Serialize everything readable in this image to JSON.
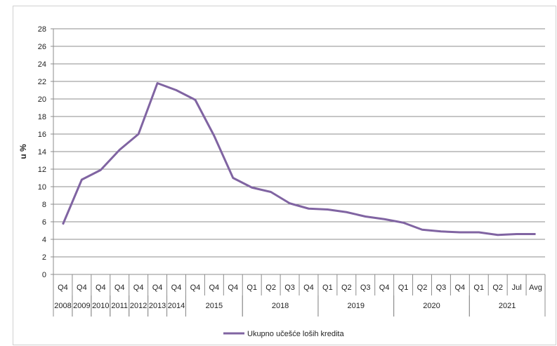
{
  "chart_data": {
    "type": "line",
    "ylabel": "u %",
    "ylim": [
      0,
      28
    ],
    "yticks": [
      0,
      2,
      4,
      6,
      8,
      10,
      12,
      14,
      16,
      18,
      20,
      22,
      24,
      26,
      28
    ],
    "grid": true,
    "legend_position": "bottom",
    "line_color": "#8064A2",
    "quarters": [
      "Q4",
      "Q4",
      "Q4",
      "Q4",
      "Q4",
      "Q4",
      "Q4",
      "Q4",
      "Q4",
      "Q4",
      "Q1",
      "Q2",
      "Q3",
      "Q4",
      "Q1",
      "Q2",
      "Q3",
      "Q4",
      "Q1",
      "Q2",
      "Q3",
      "Q4",
      "Q1",
      "Q2",
      "Jul",
      "Avg"
    ],
    "years": [
      {
        "label": "2008",
        "start": 0,
        "end": 0
      },
      {
        "label": "2009",
        "start": 1,
        "end": 1
      },
      {
        "label": "2010",
        "start": 2,
        "end": 2
      },
      {
        "label": "2011",
        "start": 3,
        "end": 3
      },
      {
        "label": "2012",
        "start": 4,
        "end": 4
      },
      {
        "label": "2013",
        "start": 5,
        "end": 5
      },
      {
        "label": "2014",
        "start": 6,
        "end": 6
      },
      {
        "label": "2015",
        "start": 7,
        "end": 9
      },
      {
        "label": "2018",
        "start": 10,
        "end": 13
      },
      {
        "label": "2019",
        "start": 14,
        "end": 17
      },
      {
        "label": "2020",
        "start": 18,
        "end": 21
      },
      {
        "label": "2021",
        "start": 22,
        "end": 25
      }
    ],
    "series": [
      {
        "name": "Ukupno učešće loših kredita",
        "values": [
          5.7,
          10.8,
          11.9,
          14.2,
          16.0,
          21.8,
          21.0,
          19.9,
          15.8,
          11.0,
          9.9,
          9.4,
          8.1,
          7.5,
          7.4,
          7.1,
          6.6,
          6.3,
          5.9,
          5.1,
          4.9,
          4.8,
          4.8,
          4.5,
          4.6,
          4.6
        ]
      }
    ]
  }
}
